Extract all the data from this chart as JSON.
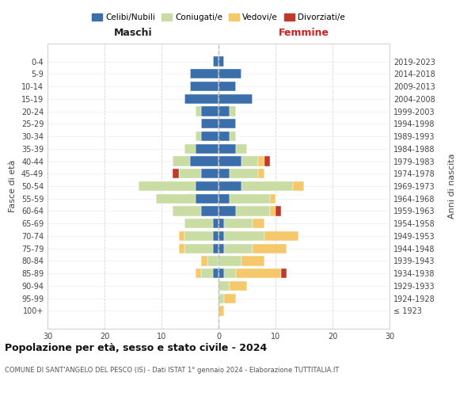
{
  "age_groups": [
    "100+",
    "95-99",
    "90-94",
    "85-89",
    "80-84",
    "75-79",
    "70-74",
    "65-69",
    "60-64",
    "55-59",
    "50-54",
    "45-49",
    "40-44",
    "35-39",
    "30-34",
    "25-29",
    "20-24",
    "15-19",
    "10-14",
    "5-9",
    "0-4"
  ],
  "birth_years": [
    "≤ 1923",
    "1924-1928",
    "1929-1933",
    "1934-1938",
    "1939-1943",
    "1944-1948",
    "1949-1953",
    "1954-1958",
    "1959-1963",
    "1964-1968",
    "1969-1973",
    "1974-1978",
    "1979-1983",
    "1984-1988",
    "1989-1993",
    "1994-1998",
    "1999-2003",
    "2004-2008",
    "2009-2013",
    "2014-2018",
    "2019-2023"
  ],
  "colors": {
    "celibi": "#3a6fab",
    "coniugati": "#c8dca4",
    "vedovi": "#f5c96b",
    "divorziati": "#c0392b"
  },
  "maschi": {
    "celibi": [
      0,
      0,
      0,
      1,
      0,
      1,
      1,
      1,
      3,
      4,
      4,
      3,
      5,
      4,
      3,
      3,
      3,
      6,
      5,
      5,
      1
    ],
    "coniugati": [
      0,
      0,
      0,
      2,
      2,
      5,
      5,
      5,
      5,
      7,
      10,
      4,
      3,
      2,
      1,
      0,
      1,
      0,
      0,
      0,
      0
    ],
    "vedovi": [
      0,
      0,
      0,
      1,
      1,
      1,
      1,
      0,
      0,
      0,
      0,
      0,
      0,
      0,
      0,
      0,
      0,
      0,
      0,
      0,
      0
    ],
    "divorziati": [
      0,
      0,
      0,
      0,
      0,
      0,
      0,
      0,
      0,
      0,
      0,
      1,
      0,
      0,
      0,
      0,
      0,
      0,
      0,
      0,
      0
    ]
  },
  "femmine": {
    "celibi": [
      0,
      0,
      0,
      1,
      0,
      1,
      1,
      1,
      3,
      2,
      4,
      2,
      4,
      3,
      2,
      3,
      2,
      6,
      3,
      4,
      1
    ],
    "coniugati": [
      0,
      1,
      2,
      2,
      4,
      5,
      7,
      5,
      6,
      7,
      9,
      5,
      3,
      2,
      1,
      0,
      1,
      0,
      0,
      0,
      0
    ],
    "vedovi": [
      1,
      2,
      3,
      8,
      4,
      6,
      6,
      2,
      1,
      1,
      2,
      1,
      1,
      0,
      0,
      0,
      0,
      0,
      0,
      0,
      0
    ],
    "divorziati": [
      0,
      0,
      0,
      1,
      0,
      0,
      0,
      0,
      1,
      0,
      0,
      0,
      1,
      0,
      0,
      0,
      0,
      0,
      0,
      0,
      0
    ]
  },
  "xlim": 30,
  "title": "Popolazione per età, sesso e stato civile - 2024",
  "subtitle": "COMUNE DI SANT'ANGELO DEL PESCO (IS) - Dati ISTAT 1° gennaio 2024 - Elaborazione TUTTITALIA.IT",
  "ylabel_left": "Fasce di età",
  "ylabel_right": "Anni di nascita",
  "xlabel_left": "Maschi",
  "xlabel_right": "Femmine",
  "legend_labels": [
    "Celibi/Nubili",
    "Coniugati/e",
    "Vedovi/e",
    "Divorziati/e"
  ],
  "bg_color": "#ffffff",
  "grid_color": "#cccccc"
}
